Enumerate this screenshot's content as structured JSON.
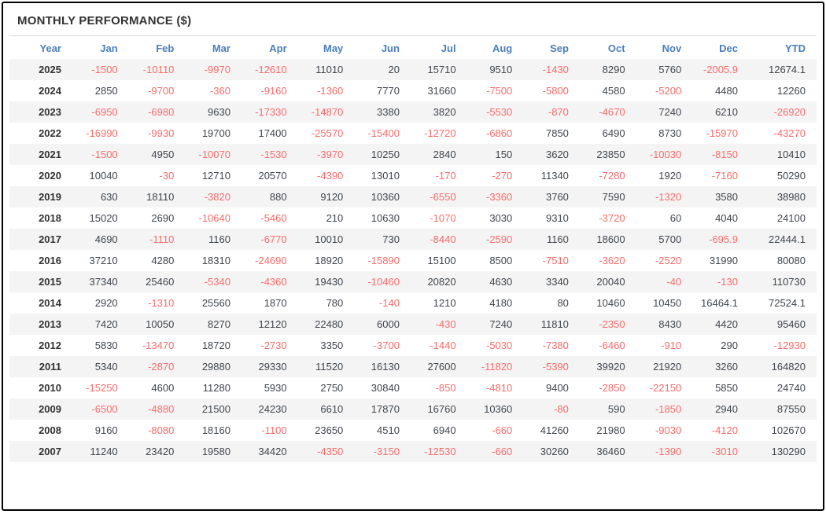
{
  "title": "MONTHLY PERFORMANCE ($)",
  "colors": {
    "header_blue": "#4a7ebb",
    "negative_red": "#f86c6b",
    "text_dark": "#333333",
    "value_dark": "#40464d",
    "row_stripe": "#f4f4f4",
    "divider": "#d9d9d9",
    "frame_border": "#000000"
  },
  "chart_data": {
    "type": "table",
    "title": "MONTHLY PERFORMANCE ($)",
    "columns": [
      "Year",
      "Jan",
      "Feb",
      "Mar",
      "Apr",
      "May",
      "Jun",
      "Jul",
      "Aug",
      "Sep",
      "Oct",
      "Nov",
      "Dec",
      "YTD"
    ],
    "rows": [
      {
        "year": "2025",
        "values": [
          -1500,
          -10110,
          -9970,
          -12610,
          11010,
          20,
          15710,
          9510,
          -1430,
          8290,
          5760,
          -2005.9,
          12674.1
        ]
      },
      {
        "year": "2024",
        "values": [
          2850,
          -9700,
          -360,
          -9160,
          -1360,
          7770,
          31660,
          -7500,
          -5800,
          4580,
          -5200,
          4480,
          12260
        ]
      },
      {
        "year": "2023",
        "values": [
          -6950,
          -6980,
          9630,
          -17330,
          -14870,
          3380,
          3820,
          -5530,
          -870,
          -4670,
          7240,
          6210,
          -26920
        ]
      },
      {
        "year": "2022",
        "values": [
          -16990,
          -9930,
          19700,
          17400,
          -25570,
          -15400,
          -12720,
          -6860,
          7850,
          6490,
          8730,
          -15970,
          -43270
        ]
      },
      {
        "year": "2021",
        "values": [
          -1500,
          4950,
          -10070,
          -1530,
          -3970,
          10250,
          2840,
          150,
          3620,
          23850,
          -10030,
          -8150,
          10410
        ]
      },
      {
        "year": "2020",
        "values": [
          10040,
          -30,
          12710,
          20570,
          -4390,
          13010,
          -170,
          -270,
          11340,
          -7280,
          1920,
          -7160,
          50290
        ]
      },
      {
        "year": "2019",
        "values": [
          630,
          18110,
          -3820,
          880,
          9120,
          10360,
          -6550,
          -3360,
          3760,
          7590,
          -1320,
          3580,
          38980
        ]
      },
      {
        "year": "2018",
        "values": [
          15020,
          2690,
          -10640,
          -5460,
          210,
          10630,
          -1070,
          3030,
          9310,
          -3720,
          60,
          4040,
          24100
        ]
      },
      {
        "year": "2017",
        "values": [
          4690,
          -1110,
          1160,
          -6770,
          10010,
          730,
          -8440,
          -2590,
          1160,
          18600,
          5700,
          -695.9,
          22444.1
        ]
      },
      {
        "year": "2016",
        "values": [
          37210,
          4280,
          18310,
          -24690,
          18920,
          -15890,
          15100,
          8500,
          -7510,
          -3620,
          -2520,
          31990,
          80080
        ]
      },
      {
        "year": "2015",
        "values": [
          37340,
          25460,
          -5340,
          -4360,
          19430,
          -10460,
          20820,
          4630,
          3340,
          20040,
          -40,
          -130,
          110730
        ]
      },
      {
        "year": "2014",
        "values": [
          2920,
          -1310,
          25560,
          1870,
          780,
          -140,
          1210,
          4180,
          80,
          10460,
          10450,
          16464.1,
          72524.1
        ]
      },
      {
        "year": "2013",
        "values": [
          7420,
          10050,
          8270,
          12120,
          22480,
          6000,
          -430,
          7240,
          11810,
          -2350,
          8430,
          4420,
          95460
        ]
      },
      {
        "year": "2012",
        "values": [
          5830,
          -13470,
          18720,
          -2730,
          3350,
          -3700,
          -1440,
          -5030,
          -7380,
          -6460,
          -910,
          290,
          -12930
        ]
      },
      {
        "year": "2011",
        "values": [
          5340,
          -2870,
          29880,
          29330,
          11520,
          16130,
          27600,
          -11820,
          -5390,
          39920,
          21920,
          3260,
          164820
        ]
      },
      {
        "year": "2010",
        "values": [
          -15250,
          4600,
          11280,
          5930,
          2750,
          30840,
          -850,
          -4810,
          9400,
          -2850,
          -22150,
          5850,
          24740
        ]
      },
      {
        "year": "2009",
        "values": [
          -6500,
          -4880,
          21500,
          24230,
          6610,
          17870,
          16760,
          10360,
          -80,
          590,
          -1850,
          2940,
          87550
        ]
      },
      {
        "year": "2008",
        "values": [
          9160,
          -8080,
          18160,
          -1100,
          23650,
          4510,
          6940,
          -660,
          41260,
          21980,
          -9030,
          -4120,
          102670
        ]
      },
      {
        "year": "2007",
        "values": [
          11240,
          23420,
          19580,
          34420,
          -4350,
          -3150,
          -12530,
          -660,
          30260,
          36460,
          -1390,
          -3010,
          130290
        ]
      }
    ]
  }
}
